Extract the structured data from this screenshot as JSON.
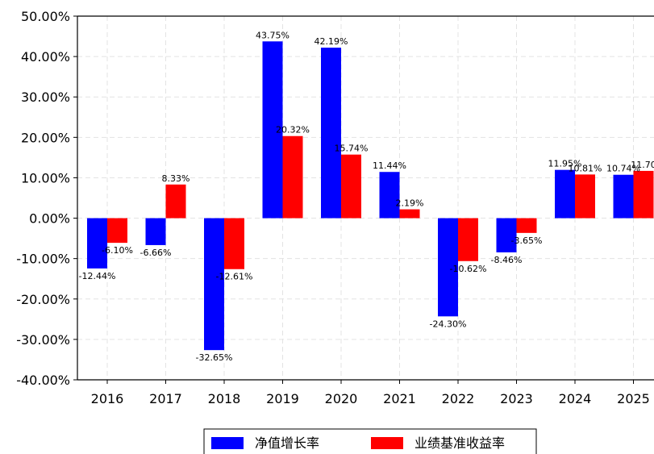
{
  "chart_data": {
    "type": "bar",
    "categories": [
      "2016",
      "2017",
      "2018",
      "2019",
      "2020",
      "2021",
      "2022",
      "2023",
      "2024",
      "2025"
    ],
    "series": [
      {
        "name": "净值增长率",
        "color": "#0000ff",
        "values": [
          -12.44,
          -6.66,
          -32.65,
          43.75,
          42.19,
          11.44,
          -24.3,
          -8.46,
          11.95,
          10.74
        ],
        "labels": [
          "-12.44%",
          "-6.66%",
          "-32.65%",
          "43.75%",
          "42.19%",
          "11.44%",
          "-24.30%",
          "-8.46%",
          "11.95%",
          "10.74%"
        ]
      },
      {
        "name": "业绩基准收益率",
        "color": "#ff0000",
        "values": [
          -6.1,
          8.33,
          -12.61,
          20.32,
          15.74,
          2.19,
          -10.62,
          -3.65,
          10.81,
          11.7
        ],
        "labels": [
          "-6.10%",
          "8.33%",
          "-12.61%",
          "20.32%",
          "15.74%",
          "2.19%",
          "-10.62%",
          "-3.65%",
          "10.81%",
          "11.70"
        ]
      }
    ],
    "ylim": [
      -40,
      50
    ],
    "yticks": [
      50,
      40,
      30,
      20,
      10,
      0,
      -10,
      -20,
      -30,
      -40
    ],
    "ytick_labels": [
      "50.00%",
      "40.00%",
      "30.00%",
      "20.00%",
      "10.00%",
      "0.00%",
      "-10.00%",
      "-20.00%",
      "-30.00%",
      "-40.00%"
    ],
    "grid": true,
    "legend_position": "bottom-center"
  }
}
